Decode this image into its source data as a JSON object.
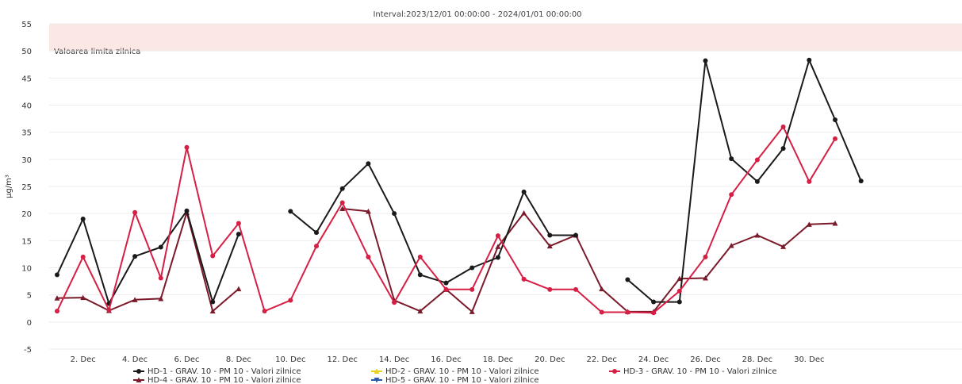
{
  "chart_data": {
    "type": "line",
    "title": "Interval:2023/12/01 00:00:00 - 2024/01/01 00:00:00",
    "ylabel": "µg/m³",
    "xlabel": "",
    "ylim": [
      -5,
      55
    ],
    "yticks": [
      -5,
      0,
      5,
      10,
      15,
      20,
      25,
      30,
      35,
      40,
      45,
      50,
      55
    ],
    "xrange": [
      1,
      31
    ],
    "xticks": [
      {
        "x": 2,
        "label": "2. Dec"
      },
      {
        "x": 4,
        "label": "4. Dec"
      },
      {
        "x": 6,
        "label": "6. Dec"
      },
      {
        "x": 8,
        "label": "8. Dec"
      },
      {
        "x": 10,
        "label": "10. Dec"
      },
      {
        "x": 12,
        "label": "12. Dec"
      },
      {
        "x": 14,
        "label": "14. Dec"
      },
      {
        "x": 16,
        "label": "16. Dec"
      },
      {
        "x": 18,
        "label": "18. Dec"
      },
      {
        "x": 20,
        "label": "20. Dec"
      },
      {
        "x": 22,
        "label": "22. Dec"
      },
      {
        "x": 24,
        "label": "24. Dec"
      },
      {
        "x": 26,
        "label": "26. Dec"
      },
      {
        "x": 28,
        "label": "28. Dec"
      },
      {
        "x": 30,
        "label": "30. Dec"
      }
    ],
    "band": {
      "from": 50,
      "to": 55,
      "label": "Valoarea limita zilnica",
      "color": "#fbe8e4"
    },
    "grid": true,
    "legend_position": "bottom",
    "series": [
      {
        "name": "HD-1 - GRAV. 10 - PM 10 - Valori zilnice",
        "color": "#1a1a1a",
        "marker": "circle",
        "points": [
          [
            1,
            8.7
          ],
          [
            2,
            19
          ],
          [
            3,
            3.4
          ],
          [
            4,
            12.1
          ],
          [
            5,
            13.8
          ],
          [
            6,
            20.5
          ],
          [
            7,
            3.7
          ],
          [
            8,
            16.2
          ],
          [
            9,
            null
          ],
          [
            10,
            20.4
          ],
          [
            11,
            16.5
          ],
          [
            12,
            24.6
          ],
          [
            13,
            29.2
          ],
          [
            14,
            20
          ],
          [
            15,
            8.7
          ],
          [
            16,
            7.2
          ],
          [
            17,
            10
          ],
          [
            18,
            11.9
          ],
          [
            19,
            24
          ],
          [
            20,
            16
          ],
          [
            21,
            16
          ],
          [
            22,
            null
          ],
          [
            23,
            7.8
          ],
          [
            24,
            3.7
          ],
          [
            25,
            3.7
          ],
          [
            26,
            48.2
          ],
          [
            27,
            30.1
          ],
          [
            28,
            25.9
          ],
          [
            29,
            32
          ],
          [
            30,
            48.3
          ],
          [
            31,
            37.3
          ],
          [
            32,
            26
          ]
        ]
      },
      {
        "name": "HD-2 - GRAV. 10 - PM 10 - Valori zilnice",
        "color": "#e8d21a",
        "marker": "triangle",
        "points": []
      },
      {
        "name": "HD-3 - GRAV. 10 - PM 10 - Valori zilnice",
        "color": "#d61f45",
        "marker": "circle",
        "points": [
          [
            1,
            2
          ],
          [
            2,
            12
          ],
          [
            3,
            2.2
          ],
          [
            4,
            20.2
          ],
          [
            5,
            8.1
          ],
          [
            6,
            32.2
          ],
          [
            7,
            12.2
          ],
          [
            8,
            18.2
          ],
          [
            9,
            2
          ],
          [
            10,
            4
          ],
          [
            11,
            14
          ],
          [
            12,
            22
          ],
          [
            13,
            12
          ],
          [
            14,
            3.6
          ],
          [
            15,
            12
          ],
          [
            16,
            6
          ],
          [
            17,
            6
          ],
          [
            18,
            15.9
          ],
          [
            19,
            7.9
          ],
          [
            20,
            6
          ],
          [
            21,
            6
          ],
          [
            22,
            1.8
          ],
          [
            23,
            1.8
          ],
          [
            24,
            1.7
          ],
          [
            25,
            5.7
          ],
          [
            26,
            12
          ],
          [
            27,
            23.5
          ],
          [
            28,
            29.9
          ],
          [
            29,
            36
          ],
          [
            30,
            25.9
          ],
          [
            31,
            33.8
          ]
        ]
      },
      {
        "name": "HD-4 - GRAV. 10 - PM 10 - Valori zilnice",
        "color": "#7a1a2a",
        "marker": "triangle",
        "points": [
          [
            1,
            4.4
          ],
          [
            2,
            4.5
          ],
          [
            3,
            2.1
          ],
          [
            4,
            4.1
          ],
          [
            5,
            4.3
          ],
          [
            6,
            20.2
          ],
          [
            7,
            2
          ],
          [
            8,
            6.1
          ],
          [
            9,
            null
          ],
          [
            10,
            null
          ],
          [
            11,
            null
          ],
          [
            12,
            20.9
          ],
          [
            13,
            20.4
          ],
          [
            14,
            4
          ],
          [
            15,
            2
          ],
          [
            16,
            6
          ],
          [
            17,
            1.9
          ],
          [
            18,
            13.9
          ],
          [
            19,
            20.1
          ],
          [
            20,
            14
          ],
          [
            21,
            16
          ],
          [
            22,
            6.1
          ],
          [
            23,
            1.9
          ],
          [
            24,
            1.9
          ],
          [
            25,
            8
          ],
          [
            26,
            8.1
          ],
          [
            27,
            14.1
          ],
          [
            28,
            16
          ],
          [
            29,
            13.9
          ],
          [
            30,
            18
          ],
          [
            31,
            18.2
          ]
        ]
      },
      {
        "name": "HD-5 - GRAV. 10 - PM 10 - Valori zilnice",
        "color": "#2a5aa8",
        "marker": "triangle-down",
        "points": []
      }
    ]
  }
}
